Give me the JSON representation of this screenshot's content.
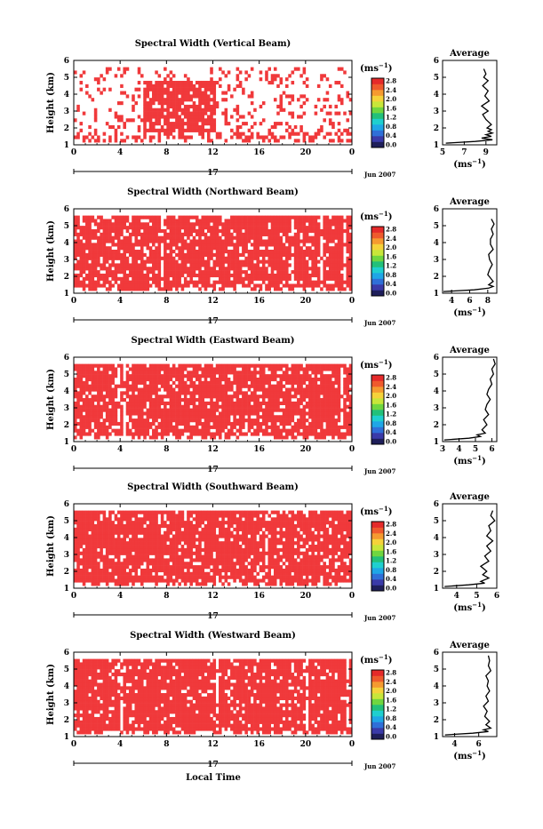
{
  "figure": {
    "x_axis_label": "Local Time",
    "date_label": "Jun 2007",
    "day_label": "17",
    "height_axis_label": "Height (km)",
    "average_title": "Average",
    "unit_label": "(ms⁻¹)",
    "unit_plain": "(ms",
    "unit_exp": "−1",
    "unit_close": ")"
  },
  "colors": {
    "data": "#f0393b",
    "frame": "#000000",
    "colorbar": [
      "#1e1e5a",
      "#3a3aa8",
      "#2f6fd8",
      "#1fa6e6",
      "#1fcfcf",
      "#22c07a",
      "#6fd640",
      "#c8e63a",
      "#f5d23a",
      "#f59a30",
      "#ef5a2d",
      "#e52a2a"
    ]
  },
  "chart_data": [
    {
      "type": "heatmap",
      "title": "Spectral Width (Vertical Beam)",
      "ylabel": "Height (km)",
      "xlabel": "Local Time",
      "xticks": [
        "0",
        "4",
        "8",
        "12",
        "16",
        "20",
        "0"
      ],
      "yticks": [
        "1",
        "2",
        "3",
        "4",
        "5",
        "6"
      ],
      "xlim": [
        0,
        24
      ],
      "ylim": [
        1,
        6
      ],
      "colorbar_label": "(ms⁻¹)",
      "colorbar_ticks": [
        "0.0",
        "0.4",
        "0.8",
        "1.2",
        "1.6",
        "2.0",
        "2.4",
        "2.8"
      ],
      "colorbar_range": [
        0,
        2.8
      ],
      "coverage": "sparse",
      "dominant_value": 2.8,
      "average_profile": {
        "title": "Average",
        "xlabel": "(ms⁻¹)",
        "xticks": [
          "5",
          "7",
          "9"
        ],
        "xlim": [
          5,
          10
        ],
        "ylim": [
          1,
          6
        ],
        "height_km": [
          1.1,
          1.2,
          1.3,
          1.4,
          1.5,
          1.6,
          1.7,
          1.8,
          1.9,
          2.0,
          2.2,
          2.5,
          2.8,
          3.0,
          3.3,
          3.6,
          3.9,
          4.2,
          4.5,
          4.8,
          5.0,
          5.2,
          5.5
        ],
        "values": [
          5.3,
          8.0,
          9.6,
          8.6,
          9.5,
          9.0,
          9.6,
          9.2,
          9.5,
          9.1,
          9.5,
          9.0,
          8.7,
          9.2,
          8.6,
          9.3,
          8.9,
          9.2,
          8.7,
          9.2,
          8.8,
          9.0,
          8.8
        ]
      }
    },
    {
      "type": "heatmap",
      "title": "Spectral Width (Northward Beam)",
      "ylabel": "Height (km)",
      "xlabel": "Local Time",
      "xticks": [
        "0",
        "4",
        "8",
        "12",
        "16",
        "20",
        "0"
      ],
      "yticks": [
        "1",
        "2",
        "3",
        "4",
        "5",
        "6"
      ],
      "xlim": [
        0,
        24
      ],
      "ylim": [
        1,
        6
      ],
      "colorbar_label": "(ms⁻¹)",
      "colorbar_ticks": [
        "0.0",
        "0.4",
        "0.8",
        "1.2",
        "1.6",
        "2.0",
        "2.4",
        "2.8"
      ],
      "colorbar_range": [
        0,
        2.8
      ],
      "coverage": "dense",
      "dominant_value": 2.8,
      "average_profile": {
        "title": "Average",
        "xlabel": "(ms⁻¹)",
        "xticks": [
          "4",
          "6",
          "8"
        ],
        "xlim": [
          3,
          9
        ],
        "ylim": [
          1,
          6
        ],
        "height_km": [
          1.1,
          1.2,
          1.3,
          1.4,
          1.5,
          1.7,
          1.9,
          2.1,
          2.4,
          2.7,
          3.0,
          3.3,
          3.6,
          3.9,
          4.2,
          4.5,
          4.8,
          5.1,
          5.4
        ],
        "values": [
          3.1,
          6.5,
          8.1,
          8.6,
          8.1,
          8.6,
          8.3,
          8.0,
          8.2,
          8.5,
          8.2,
          8.1,
          8.6,
          8.3,
          8.3,
          8.6,
          8.4,
          8.7,
          8.4
        ]
      }
    },
    {
      "type": "heatmap",
      "title": "Spectral Width (Eastward Beam)",
      "ylabel": "Height (km)",
      "xlabel": "Local Time",
      "xticks": [
        "0",
        "4",
        "8",
        "12",
        "16",
        "20",
        "0"
      ],
      "yticks": [
        "1",
        "2",
        "3",
        "4",
        "5",
        "6"
      ],
      "xlim": [
        0,
        24
      ],
      "ylim": [
        1,
        6
      ],
      "colorbar_label": "(ms⁻¹)",
      "colorbar_ticks": [
        "0.0",
        "0.4",
        "0.8",
        "1.2",
        "1.6",
        "2.0",
        "2.4",
        "2.8"
      ],
      "colorbar_range": [
        0,
        2.8
      ],
      "coverage": "dense",
      "dominant_value": 2.8,
      "average_profile": {
        "title": "Average",
        "xlabel": "(ms⁻¹)",
        "xticks": [
          "3",
          "4",
          "5",
          "6"
        ],
        "xlim": [
          3,
          6.3
        ],
        "ylim": [
          1,
          6
        ],
        "height_km": [
          1.1,
          1.2,
          1.3,
          1.4,
          1.5,
          1.7,
          2.0,
          2.3,
          2.6,
          2.9,
          3.2,
          3.5,
          3.8,
          4.1,
          4.4,
          4.7,
          5.0,
          5.3,
          5.6,
          5.9
        ],
        "values": [
          3.1,
          4.6,
          5.3,
          5.1,
          5.6,
          5.4,
          5.7,
          5.5,
          5.8,
          5.6,
          5.7,
          5.9,
          5.7,
          5.8,
          6.0,
          5.9,
          6.1,
          6.0,
          6.2,
          6.1
        ]
      }
    },
    {
      "type": "heatmap",
      "title": "Spectral Width (Southward Beam)",
      "ylabel": "Height (km)",
      "xlabel": "Local Time",
      "xticks": [
        "0",
        "4",
        "8",
        "12",
        "16",
        "20",
        "0"
      ],
      "yticks": [
        "1",
        "2",
        "3",
        "4",
        "5",
        "6"
      ],
      "xlim": [
        0,
        24
      ],
      "ylim": [
        1,
        6
      ],
      "colorbar_label": "(ms⁻¹)",
      "colorbar_ticks": [
        "0.0",
        "0.4",
        "0.8",
        "1.2",
        "1.6",
        "2.0",
        "2.4",
        "2.8"
      ],
      "colorbar_range": [
        0,
        2.8
      ],
      "coverage": "dense",
      "dominant_value": 2.8,
      "average_profile": {
        "title": "Average",
        "xlabel": "(ms⁻¹)",
        "xticks": [
          "4",
          "5",
          "6"
        ],
        "xlim": [
          3.3,
          6
        ],
        "ylim": [
          1,
          6
        ],
        "height_km": [
          1.1,
          1.2,
          1.3,
          1.4,
          1.6,
          1.8,
          2.0,
          2.3,
          2.6,
          2.9,
          3.2,
          3.5,
          3.8,
          4.1,
          4.4,
          4.7,
          5.0,
          5.3,
          5.6
        ],
        "values": [
          3.4,
          4.6,
          5.4,
          5.2,
          5.6,
          5.3,
          5.5,
          5.2,
          5.6,
          5.4,
          5.7,
          5.5,
          5.8,
          5.5,
          5.7,
          5.6,
          5.9,
          5.7,
          5.8
        ]
      }
    },
    {
      "type": "heatmap",
      "title": "Spectral Width (Westward Beam)",
      "ylabel": "Height (km)",
      "xlabel": "Local Time",
      "xticks": [
        "0",
        "4",
        "8",
        "12",
        "16",
        "20",
        "0"
      ],
      "yticks": [
        "1",
        "2",
        "3",
        "4",
        "5",
        "6"
      ],
      "xlim": [
        0,
        24
      ],
      "ylim": [
        1,
        6
      ],
      "colorbar_label": "(ms⁻¹)",
      "colorbar_ticks": [
        "0.0",
        "0.4",
        "0.8",
        "1.2",
        "1.6",
        "2.0",
        "2.4",
        "2.8"
      ],
      "colorbar_range": [
        0,
        2.8
      ],
      "coverage": "dense",
      "dominant_value": 2.8,
      "average_profile": {
        "title": "Average",
        "xlabel": "(ms⁻¹)",
        "xticks": [
          "4",
          "6"
        ],
        "xlim": [
          3,
          7.5
        ],
        "ylim": [
          1,
          6
        ],
        "height_km": [
          1.1,
          1.2,
          1.3,
          1.4,
          1.5,
          1.7,
          1.9,
          2.2,
          2.5,
          2.8,
          3.1,
          3.4,
          3.7,
          4.0,
          4.3,
          4.6,
          4.9,
          5.2,
          5.5,
          5.8
        ],
        "values": [
          3.2,
          5.5,
          6.8,
          6.4,
          7.0,
          6.6,
          6.9,
          6.5,
          6.7,
          6.4,
          6.8,
          6.6,
          6.9,
          6.7,
          6.8,
          6.6,
          7.0,
          6.8,
          6.9,
          6.8
        ]
      }
    }
  ]
}
